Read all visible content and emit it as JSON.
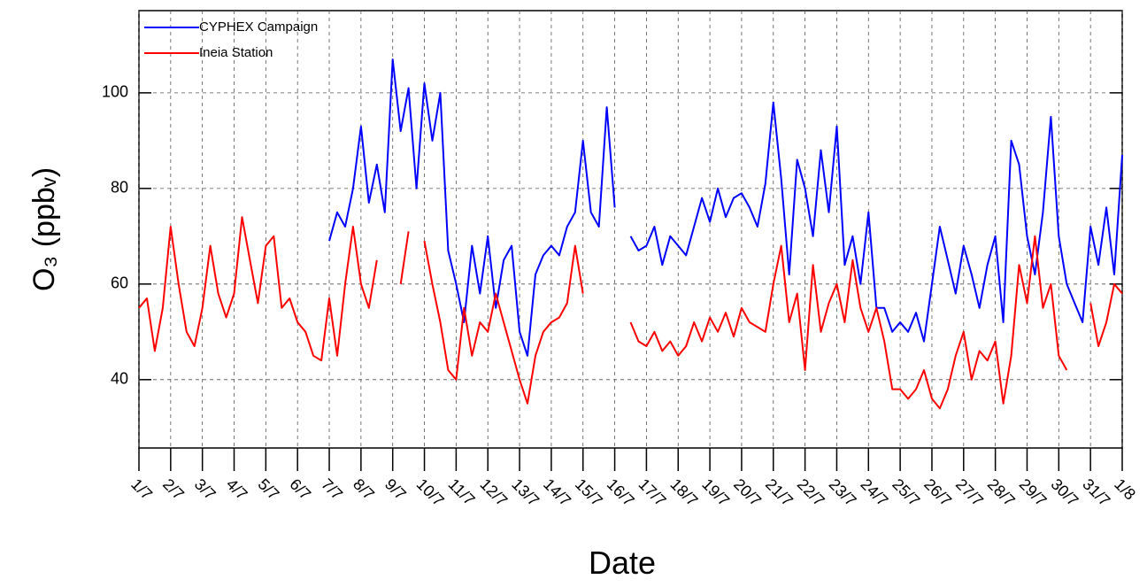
{
  "chart_data": {
    "type": "line",
    "xlabel": "Date",
    "ylabel": "O₃ (ppbᵥ)",
    "xlim": [
      0,
      31
    ],
    "ylim": [
      25.7,
      117.2
    ],
    "xticks": [
      {
        "value": 0,
        "label": "1/7"
      },
      {
        "value": 1,
        "label": "2/7"
      },
      {
        "value": 2,
        "label": "3/7"
      },
      {
        "value": 3,
        "label": "4/7"
      },
      {
        "value": 4,
        "label": "5/7"
      },
      {
        "value": 5,
        "label": "6/7"
      },
      {
        "value": 6,
        "label": "7/7"
      },
      {
        "value": 7,
        "label": "8/7"
      },
      {
        "value": 8,
        "label": "9/7"
      },
      {
        "value": 9,
        "label": "10/7"
      },
      {
        "value": 10,
        "label": "11/7"
      },
      {
        "value": 11,
        "label": "12/7"
      },
      {
        "value": 12,
        "label": "13/7"
      },
      {
        "value": 13,
        "label": "14/7"
      },
      {
        "value": 14,
        "label": "15/7"
      },
      {
        "value": 15,
        "label": "16/7"
      },
      {
        "value": 16,
        "label": "17/7"
      },
      {
        "value": 17,
        "label": "18/7"
      },
      {
        "value": 18,
        "label": "19/7"
      },
      {
        "value": 19,
        "label": "20/7"
      },
      {
        "value": 20,
        "label": "21/7"
      },
      {
        "value": 21,
        "label": "22/7"
      },
      {
        "value": 22,
        "label": "23/7"
      },
      {
        "value": 23,
        "label": "24/7"
      },
      {
        "value": 24,
        "label": "25/7"
      },
      {
        "value": 25,
        "label": "26/7"
      },
      {
        "value": 26,
        "label": "27/7"
      },
      {
        "value": 27,
        "label": "28/7"
      },
      {
        "value": 28,
        "label": "29/7"
      },
      {
        "value": 29,
        "label": "30/7"
      },
      {
        "value": 30,
        "label": "31/7"
      },
      {
        "value": 31,
        "label": "1/8"
      }
    ],
    "yticks": [
      40,
      60,
      80,
      100
    ],
    "grid": true,
    "legend": "upper left",
    "x": [
      0,
      0.25,
      0.5,
      0.75,
      1,
      1.25,
      1.5,
      1.75,
      2,
      2.25,
      2.5,
      2.75,
      3,
      3.25,
      3.5,
      3.75,
      4,
      4.25,
      4.5,
      4.75,
      5,
      5.25,
      5.5,
      5.75,
      6,
      6.25,
      6.5,
      6.75,
      7,
      7.25,
      7.5,
      7.75,
      8,
      8.25,
      8.5,
      8.75,
      9,
      9.25,
      9.5,
      9.75,
      10,
      10.25,
      10.5,
      10.75,
      11,
      11.25,
      11.5,
      11.75,
      12,
      12.25,
      12.5,
      12.75,
      13,
      13.25,
      13.5,
      13.75,
      14,
      14.25,
      14.5,
      14.75,
      15,
      15.25,
      15.5,
      15.75,
      16,
      16.25,
      16.5,
      16.75,
      17,
      17.25,
      17.5,
      17.75,
      18,
      18.25,
      18.5,
      18.75,
      19,
      19.25,
      19.5,
      19.75,
      20,
      20.25,
      20.5,
      20.75,
      21,
      21.25,
      21.5,
      21.75,
      22,
      22.25,
      22.5,
      22.75,
      23,
      23.25,
      23.5,
      23.75,
      24,
      24.25,
      24.5,
      24.75,
      25,
      25.25,
      25.5,
      25.75,
      26,
      26.25,
      26.5,
      26.75,
      27,
      27.25,
      27.5,
      27.75,
      28,
      28.25,
      28.5,
      28.75,
      29,
      29.25,
      29.5,
      29.75,
      30,
      30.25,
      30.5,
      30.75,
      31
    ],
    "series": [
      {
        "name": "CYPHEX Campaign",
        "color": "#0000ff",
        "values": [
          null,
          null,
          null,
          null,
          null,
          null,
          null,
          null,
          null,
          null,
          null,
          null,
          null,
          null,
          null,
          null,
          null,
          null,
          null,
          null,
          null,
          null,
          null,
          null,
          69,
          75,
          72,
          80,
          93,
          77,
          85,
          75,
          107,
          92,
          101,
          80,
          102,
          90,
          100,
          67,
          60,
          52,
          68,
          58,
          70,
          55,
          65,
          68,
          50,
          45,
          62,
          66,
          68,
          66,
          72,
          75,
          90,
          75,
          72,
          97,
          76,
          null,
          70,
          67,
          68,
          72,
          64,
          70,
          68,
          66,
          72,
          78,
          73,
          80,
          74,
          78,
          79,
          76,
          72,
          81,
          98,
          82,
          62,
          86,
          80,
          70,
          88,
          75,
          93,
          64,
          70,
          60,
          75,
          55,
          55,
          50,
          52,
          50,
          54,
          48,
          60,
          72,
          65,
          58,
          68,
          62,
          55,
          64,
          70,
          52,
          90,
          85,
          70,
          62,
          75,
          95,
          70,
          60,
          56,
          52,
          72,
          64,
          76,
          62,
          87
        ]
      },
      {
        "name": "Ineia Station",
        "color": "#ff0000",
        "values": [
          55,
          57,
          46,
          55,
          72,
          60,
          50,
          47,
          55,
          68,
          58,
          53,
          58,
          74,
          65,
          56,
          68,
          70,
          55,
          57,
          52,
          50,
          45,
          44,
          57,
          45,
          60,
          72,
          60,
          55,
          65,
          null,
          null,
          60,
          71,
          null,
          69,
          60,
          52,
          42,
          40,
          55,
          45,
          52,
          50,
          58,
          52,
          46,
          40,
          35,
          45,
          50,
          52,
          53,
          56,
          68,
          58,
          null,
          null,
          null,
          null,
          null,
          52,
          48,
          47,
          50,
          46,
          48,
          45,
          47,
          52,
          48,
          53,
          50,
          54,
          49,
          55,
          52,
          51,
          50,
          60,
          68,
          52,
          58,
          42,
          64,
          50,
          56,
          60,
          52,
          65,
          55,
          50,
          55,
          48,
          38,
          38,
          36,
          38,
          42,
          36,
          34,
          38,
          45,
          50,
          40,
          46,
          44,
          48,
          35,
          45,
          64,
          56,
          70,
          55,
          60,
          45,
          42,
          null,
          null,
          56,
          47,
          52,
          60,
          58
        ]
      }
    ]
  }
}
